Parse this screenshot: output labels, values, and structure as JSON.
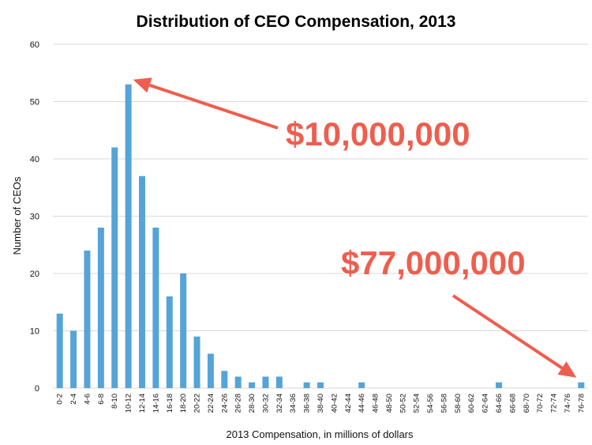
{
  "chart_data": {
    "type": "bar",
    "title": "Distribution of CEO Compensation, 2013",
    "xlabel": "2013 Compensation, in millions of dollars",
    "ylabel": "Number of CEOs",
    "ylim": [
      0,
      60
    ],
    "yticks": [
      0,
      10,
      20,
      30,
      40,
      50,
      60
    ],
    "grid": true,
    "bar_color": "#55a4d8",
    "annotation_color": "#ee5e4e",
    "categories": [
      "0-2",
      "2-4",
      "4-6",
      "6-8",
      "8-10",
      "10-12",
      "12-14",
      "14-16",
      "16-18",
      "18-20",
      "20-22",
      "22-24",
      "24-26",
      "26-28",
      "28-30",
      "30-32",
      "32-34",
      "34-36",
      "36-38",
      "38-40",
      "40-42",
      "42-44",
      "44-46",
      "46-48",
      "48-50",
      "50-52",
      "52-54",
      "54-56",
      "56-58",
      "58-60",
      "60-62",
      "62-64",
      "64-66",
      "66-68",
      "68-70",
      "70-72",
      "72-74",
      "74-76",
      "76-78"
    ],
    "values": [
      13,
      10,
      24,
      28,
      42,
      53,
      37,
      28,
      16,
      20,
      9,
      6,
      3,
      2,
      1,
      2,
      2,
      0,
      1,
      1,
      0,
      0,
      1,
      0,
      0,
      0,
      0,
      0,
      0,
      0,
      0,
      0,
      1,
      0,
      0,
      0,
      0,
      0,
      1
    ],
    "annotations": [
      {
        "text": "$10,000,000",
        "points_to": "10-12"
      },
      {
        "text": "$77,000,000",
        "points_to": "76-78"
      }
    ]
  }
}
